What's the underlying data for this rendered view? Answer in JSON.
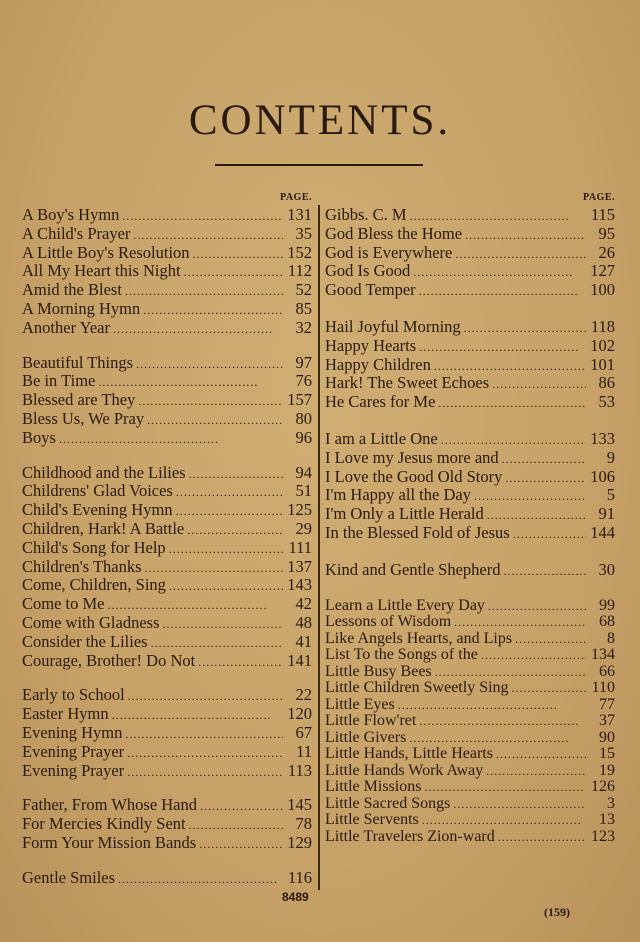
{
  "title": "CONTENTS.",
  "page_header": "PAGE.",
  "left_column": [
    [
      [
        "A Boy's Hymn",
        "131"
      ],
      [
        "A Child's Prayer",
        "35"
      ],
      [
        "A Little Boy's Resolution",
        "152"
      ],
      [
        "All My Heart this Night",
        "112"
      ],
      [
        "Amid the Blest",
        "52"
      ],
      [
        "A Morning Hymn",
        "85"
      ],
      [
        "Another Year",
        "32"
      ]
    ],
    [
      [
        "Beautiful Things",
        "97"
      ],
      [
        "Be in Time",
        "76"
      ],
      [
        "Blessed are They",
        "157"
      ],
      [
        "Bless Us, We Pray",
        "80"
      ],
      [
        "Boys",
        "96"
      ]
    ],
    [
      [
        "Childhood and the Lilies",
        "94"
      ],
      [
        "Childrens' Glad Voices",
        "51"
      ],
      [
        "Child's Evening Hymn",
        "125"
      ],
      [
        "Children, Hark! A Battle",
        "29"
      ],
      [
        "Child's Song for Help",
        "111"
      ],
      [
        "Children's Thanks",
        "137"
      ],
      [
        "Come, Children, Sing",
        "143"
      ],
      [
        "Come to Me",
        "42"
      ],
      [
        "Come with Gladness",
        "48"
      ],
      [
        "Consider the Lilies",
        "41"
      ],
      [
        "Courage, Brother! Do Not",
        "141"
      ]
    ],
    [
      [
        "Early to School",
        "22"
      ],
      [
        "Easter Hymn",
        "120"
      ],
      [
        "Evening Hymn",
        "67"
      ],
      [
        "Evening Prayer",
        "11"
      ],
      [
        "Evening Prayer",
        "113"
      ]
    ],
    [
      [
        "Father, From Whose Hand",
        "145"
      ],
      [
        "For Mercies Kindly Sent",
        "78"
      ],
      [
        "Form Your Mission Bands",
        "129"
      ]
    ],
    [
      [
        "Gentle Smiles",
        "116"
      ]
    ]
  ],
  "right_column": [
    [
      [
        "Gibbs.  C. M",
        "115"
      ],
      [
        "God Bless the Home",
        "95"
      ],
      [
        "God is Everywhere",
        "26"
      ],
      [
        "God Is Good",
        "127"
      ],
      [
        "Good Temper",
        "100"
      ]
    ],
    [
      [
        "Hail Joyful Morning",
        "118"
      ],
      [
        "Happy Hearts",
        "102"
      ],
      [
        "Happy Children",
        "101"
      ],
      [
        "Hark! The Sweet Echoes",
        "86"
      ],
      [
        "He Cares for Me",
        "53"
      ]
    ],
    [
      [
        "I am a Little One",
        "133"
      ],
      [
        "I Love my Jesus more and",
        "9"
      ],
      [
        "I Love the Good Old Story",
        "106"
      ],
      [
        "I'm Happy all the Day",
        "5"
      ],
      [
        "I'm Only a Little Herald",
        "91"
      ],
      [
        "In the Blessed Fold of Jesus",
        "144"
      ]
    ],
    [
      [
        "Kind and Gentle Shepherd",
        "30"
      ]
    ],
    [
      [
        "Learn a Little Every Day",
        "99"
      ],
      [
        "Lessons of Wisdom",
        "68"
      ],
      [
        "Like Angels Hearts, and Lips",
        "8"
      ],
      [
        "List To the Songs of the",
        "134"
      ],
      [
        "Little Busy Bees",
        "66"
      ],
      [
        "Little Children Sweetly Sing",
        "110"
      ],
      [
        "Little Eyes",
        "77"
      ],
      [
        "Little Flow'ret",
        "37"
      ],
      [
        "Little Givers",
        "90"
      ],
      [
        "Little Hands, Little Hearts",
        "15"
      ],
      [
        "Little Hands Work Away",
        "19"
      ],
      [
        "Little Missions",
        "126"
      ],
      [
        "Little Sacred Songs",
        "3"
      ],
      [
        "Little Servents",
        "13"
      ],
      [
        "Little Travelers Zion-ward",
        "123"
      ]
    ]
  ],
  "plate_number": "8489",
  "folio": "(159)"
}
